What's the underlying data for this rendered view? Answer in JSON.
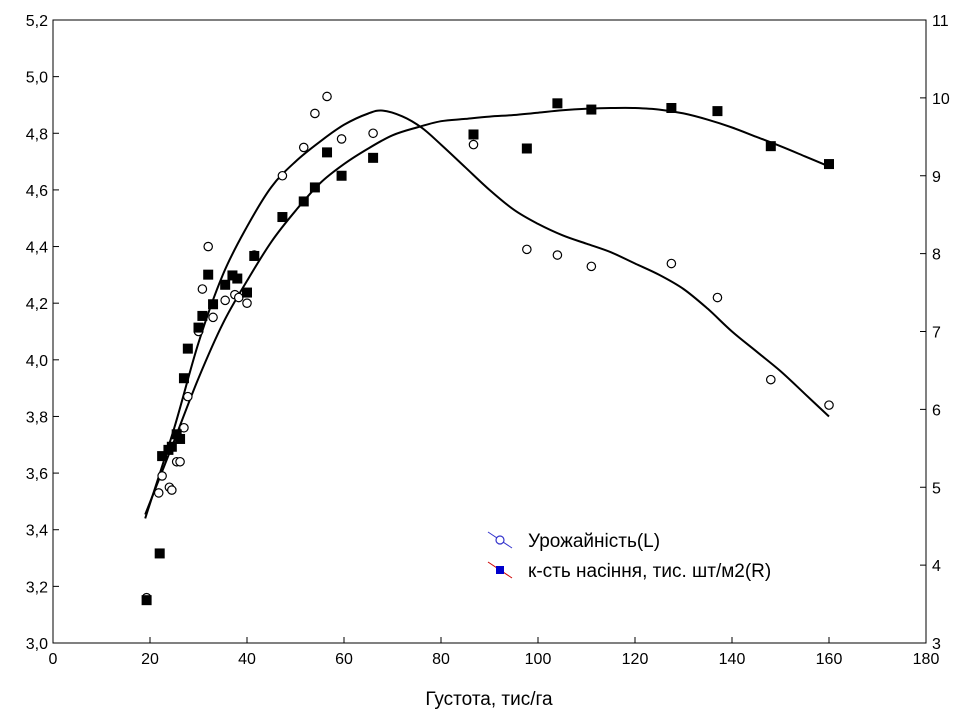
{
  "chart_data": {
    "type": "scatter",
    "title": "",
    "xlabel": "Густота, тис/га",
    "ylabel_left": "",
    "ylabel_right": "",
    "xlim": [
      0,
      180
    ],
    "ylim_left": [
      3.0,
      5.2
    ],
    "ylim_right": [
      3,
      11
    ],
    "x_ticks": [
      0,
      20,
      40,
      60,
      80,
      100,
      120,
      140,
      160,
      180
    ],
    "x_tick_labels": [
      "0",
      "20",
      "40",
      "60",
      "80",
      "100",
      "120",
      "140",
      "160",
      "180"
    ],
    "y_left_ticks": [
      3.0,
      3.2,
      3.4,
      3.6,
      3.8,
      4.0,
      4.2,
      4.4,
      4.6,
      4.8,
      5.0,
      5.2
    ],
    "y_left_tick_labels": [
      "3,0",
      "3,2",
      "3,4",
      "3,6",
      "3,8",
      "4,0",
      "4,2",
      "4,4",
      "4,6",
      "4,8",
      "5,0",
      "5,2"
    ],
    "y_right_ticks": [
      3,
      4,
      5,
      6,
      7,
      8,
      9,
      10,
      11
    ],
    "y_right_tick_labels": [
      "3",
      "4",
      "5",
      "6",
      "7",
      "8",
      "9",
      "10",
      "11"
    ],
    "grid": false,
    "legend_position": "bottom-right",
    "series": [
      {
        "name": "Урожайність(L)",
        "axis": "left",
        "marker": "open-circle",
        "points": [
          [
            19.3,
            3.16
          ],
          [
            21.8,
            3.53
          ],
          [
            22.5,
            3.59
          ],
          [
            24.0,
            3.55
          ],
          [
            24.5,
            3.54
          ],
          [
            25.5,
            3.64
          ],
          [
            26.2,
            3.64
          ],
          [
            27.0,
            3.76
          ],
          [
            27.8,
            3.87
          ],
          [
            30.0,
            4.1
          ],
          [
            30.8,
            4.25
          ],
          [
            32.0,
            4.4
          ],
          [
            33.0,
            4.15
          ],
          [
            35.5,
            4.21
          ],
          [
            37.5,
            4.23
          ],
          [
            38.3,
            4.22
          ],
          [
            40.0,
            4.2
          ],
          [
            41.5,
            4.37
          ],
          [
            47.3,
            4.65
          ],
          [
            51.7,
            4.75
          ],
          [
            54.0,
            4.87
          ],
          [
            56.5,
            4.93
          ],
          [
            59.5,
            4.78
          ],
          [
            66.0,
            4.8
          ],
          [
            86.7,
            4.76
          ],
          [
            97.7,
            4.39
          ],
          [
            104.0,
            4.37
          ],
          [
            111.0,
            4.33
          ],
          [
            127.5,
            4.34
          ],
          [
            137.0,
            4.22
          ],
          [
            148.0,
            3.93
          ],
          [
            160.0,
            3.84
          ]
        ],
        "curve": [
          [
            19.0,
            3.44
          ],
          [
            25.0,
            3.76
          ],
          [
            30.0,
            4.06
          ],
          [
            35.0,
            4.3
          ],
          [
            40.0,
            4.47
          ],
          [
            45.0,
            4.61
          ],
          [
            50.0,
            4.7
          ],
          [
            55.0,
            4.77
          ],
          [
            60.0,
            4.83
          ],
          [
            65.0,
            4.87
          ],
          [
            68.0,
            4.88
          ],
          [
            72.0,
            4.86
          ],
          [
            76.0,
            4.82
          ],
          [
            80.0,
            4.76
          ],
          [
            85.0,
            4.68
          ],
          [
            90.0,
            4.6
          ],
          [
            95.0,
            4.53
          ],
          [
            100.0,
            4.48
          ],
          [
            105.0,
            4.44
          ],
          [
            110.0,
            4.41
          ],
          [
            115.0,
            4.38
          ],
          [
            120.0,
            4.34
          ],
          [
            125.0,
            4.3
          ],
          [
            130.0,
            4.25
          ],
          [
            135.0,
            4.18
          ],
          [
            140.0,
            4.1
          ],
          [
            145.0,
            4.03
          ],
          [
            150.0,
            3.96
          ],
          [
            155.0,
            3.88
          ],
          [
            160.0,
            3.8
          ]
        ]
      },
      {
        "name": "к-сть насіння, тис. шт/м2(R)",
        "axis": "right",
        "marker": "filled-square",
        "points": [
          [
            19.3,
            3.55
          ],
          [
            22.0,
            4.15
          ],
          [
            22.5,
            5.4
          ],
          [
            23.8,
            5.48
          ],
          [
            24.5,
            5.52
          ],
          [
            25.5,
            5.68
          ],
          [
            26.2,
            5.62
          ],
          [
            27.0,
            6.4
          ],
          [
            27.8,
            6.78
          ],
          [
            30.0,
            7.05
          ],
          [
            30.8,
            7.2
          ],
          [
            32.0,
            7.73
          ],
          [
            33.0,
            7.35
          ],
          [
            35.5,
            7.6
          ],
          [
            37.0,
            7.72
          ],
          [
            38.0,
            7.68
          ],
          [
            40.0,
            7.5
          ],
          [
            41.5,
            7.97
          ],
          [
            47.3,
            8.47
          ],
          [
            51.7,
            8.67
          ],
          [
            54.0,
            8.85
          ],
          [
            56.5,
            9.3
          ],
          [
            59.5,
            9.0
          ],
          [
            66.0,
            9.23
          ],
          [
            86.7,
            9.53
          ],
          [
            97.7,
            9.35
          ],
          [
            104.0,
            9.93
          ],
          [
            111.0,
            9.85
          ],
          [
            127.5,
            9.87
          ],
          [
            137.0,
            9.83
          ],
          [
            148.0,
            9.38
          ],
          [
            160.0,
            9.15
          ]
        ],
        "curve": [
          [
            19.0,
            4.65
          ],
          [
            25.0,
            5.6
          ],
          [
            30.0,
            6.4
          ],
          [
            35.0,
            7.1
          ],
          [
            40.0,
            7.65
          ],
          [
            45.0,
            8.15
          ],
          [
            50.0,
            8.55
          ],
          [
            55.0,
            8.9
          ],
          [
            60.0,
            9.15
          ],
          [
            65.0,
            9.35
          ],
          [
            70.0,
            9.52
          ],
          [
            75.0,
            9.62
          ],
          [
            80.0,
            9.7
          ],
          [
            85.0,
            9.73
          ],
          [
            90.0,
            9.76
          ],
          [
            95.0,
            9.78
          ],
          [
            100.0,
            9.81
          ],
          [
            105.0,
            9.84
          ],
          [
            110.0,
            9.86
          ],
          [
            115.0,
            9.87
          ],
          [
            120.0,
            9.87
          ],
          [
            125.0,
            9.85
          ],
          [
            130.0,
            9.8
          ],
          [
            135.0,
            9.72
          ],
          [
            140.0,
            9.62
          ],
          [
            145.0,
            9.5
          ],
          [
            150.0,
            9.38
          ],
          [
            155.0,
            9.25
          ],
          [
            160.0,
            9.12
          ]
        ]
      }
    ]
  },
  "legend": {
    "items": [
      {
        "label": "Урожайність(L)",
        "line_color": "#3333cc",
        "marker_color": "#3333cc"
      },
      {
        "label": "к-сть насіння, тис. шт/м2(R)",
        "line_color": "#cc0000",
        "marker_color": "#0000cc"
      }
    ]
  },
  "colors": {
    "axes": "#000000",
    "curve": "#000000",
    "markers": "#000000",
    "background": "#ffffff"
  }
}
